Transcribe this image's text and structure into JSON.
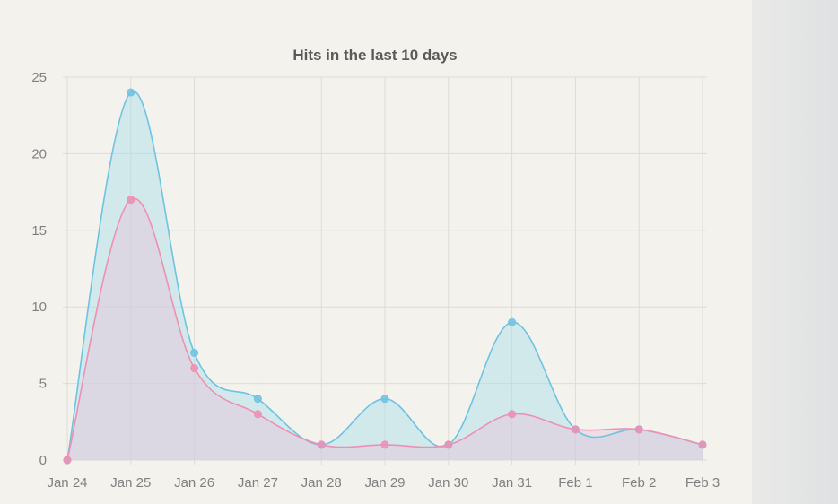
{
  "chart_data": {
    "type": "area",
    "title": "Hits in the last 10 days",
    "xlabel": "",
    "ylabel": "",
    "categories": [
      "Jan 24",
      "Jan 25",
      "Jan 26",
      "Jan 27",
      "Jan 28",
      "Jan 29",
      "Jan 30",
      "Jan 31",
      "Feb 1",
      "Feb 2",
      "Feb 3"
    ],
    "ylim": [
      0,
      25
    ],
    "yticks": [
      "0",
      "5",
      "10",
      "15",
      "20",
      "25"
    ],
    "grid": true,
    "series": [
      {
        "color": "#6ec3e2",
        "fill": "#a9dde9",
        "values": [
          0,
          24,
          7,
          4,
          1,
          4,
          1,
          9,
          2,
          2,
          1
        ]
      },
      {
        "color": "#ef8fb3",
        "fill": "#e7c4dc",
        "values": [
          0,
          17,
          6,
          3,
          1,
          1,
          1,
          3,
          2,
          2,
          1
        ]
      }
    ]
  }
}
